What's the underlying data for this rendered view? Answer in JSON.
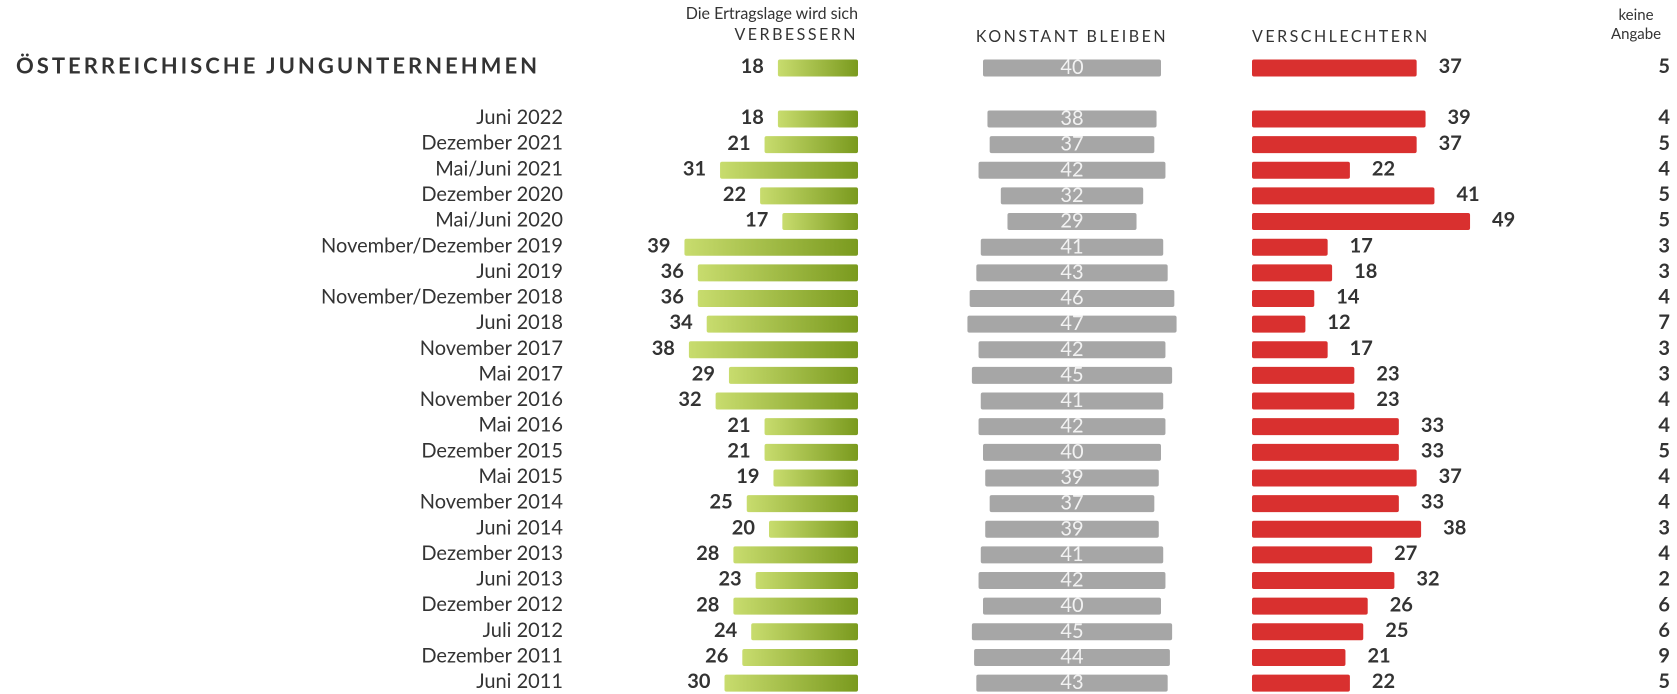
{
  "chart_data": {
    "type": "bar",
    "header_note": "Die Ertragslage wird sich",
    "summary": {
      "label": "ÖSTERREICHISCHE JUNGUNTERNEHMEN",
      "values": [
        18,
        40,
        37,
        5
      ]
    },
    "categories": [
      "Juni 2022",
      "Dezember 2021",
      "Mai/Juni 2021",
      "Dezember 2020",
      "Mai/Juni 2020",
      "November/Dezember 2019",
      "Juni 2019",
      "November/Dezember 2018",
      "Juni 2018",
      "November 2017",
      "Mai 2017",
      "November 2016",
      "Mai 2016",
      "Dezember 2015",
      "Mai 2015",
      "November 2014",
      "Juni 2014",
      "Dezember 2013",
      "Juni 2013",
      "Dezember 2012",
      "Juli 2012",
      "Dezember 2011",
      "Juni 2011"
    ],
    "series": [
      {
        "name": "VERBESSERN",
        "color": [
          "#c8dc6e",
          "#7a9a1e"
        ],
        "values": [
          18,
          21,
          31,
          22,
          17,
          39,
          36,
          36,
          34,
          38,
          29,
          32,
          21,
          21,
          19,
          25,
          20,
          28,
          23,
          28,
          24,
          26,
          30
        ]
      },
      {
        "name": "KONSTANT BLEIBEN",
        "color": "#a6a6a6",
        "values": [
          38,
          37,
          42,
          32,
          29,
          41,
          43,
          46,
          47,
          42,
          45,
          41,
          42,
          40,
          39,
          37,
          39,
          41,
          42,
          40,
          45,
          44,
          43
        ]
      },
      {
        "name": "VERSCHLECHTERN",
        "color": "#d9302f",
        "values": [
          39,
          37,
          22,
          41,
          49,
          17,
          18,
          14,
          12,
          17,
          23,
          23,
          33,
          33,
          37,
          33,
          38,
          27,
          32,
          26,
          25,
          21,
          22
        ]
      },
      {
        "name": "keine Angabe",
        "values": [
          4,
          5,
          4,
          5,
          5,
          3,
          3,
          4,
          7,
          3,
          3,
          4,
          4,
          5,
          4,
          4,
          3,
          4,
          2,
          6,
          6,
          9,
          5
        ]
      }
    ]
  }
}
